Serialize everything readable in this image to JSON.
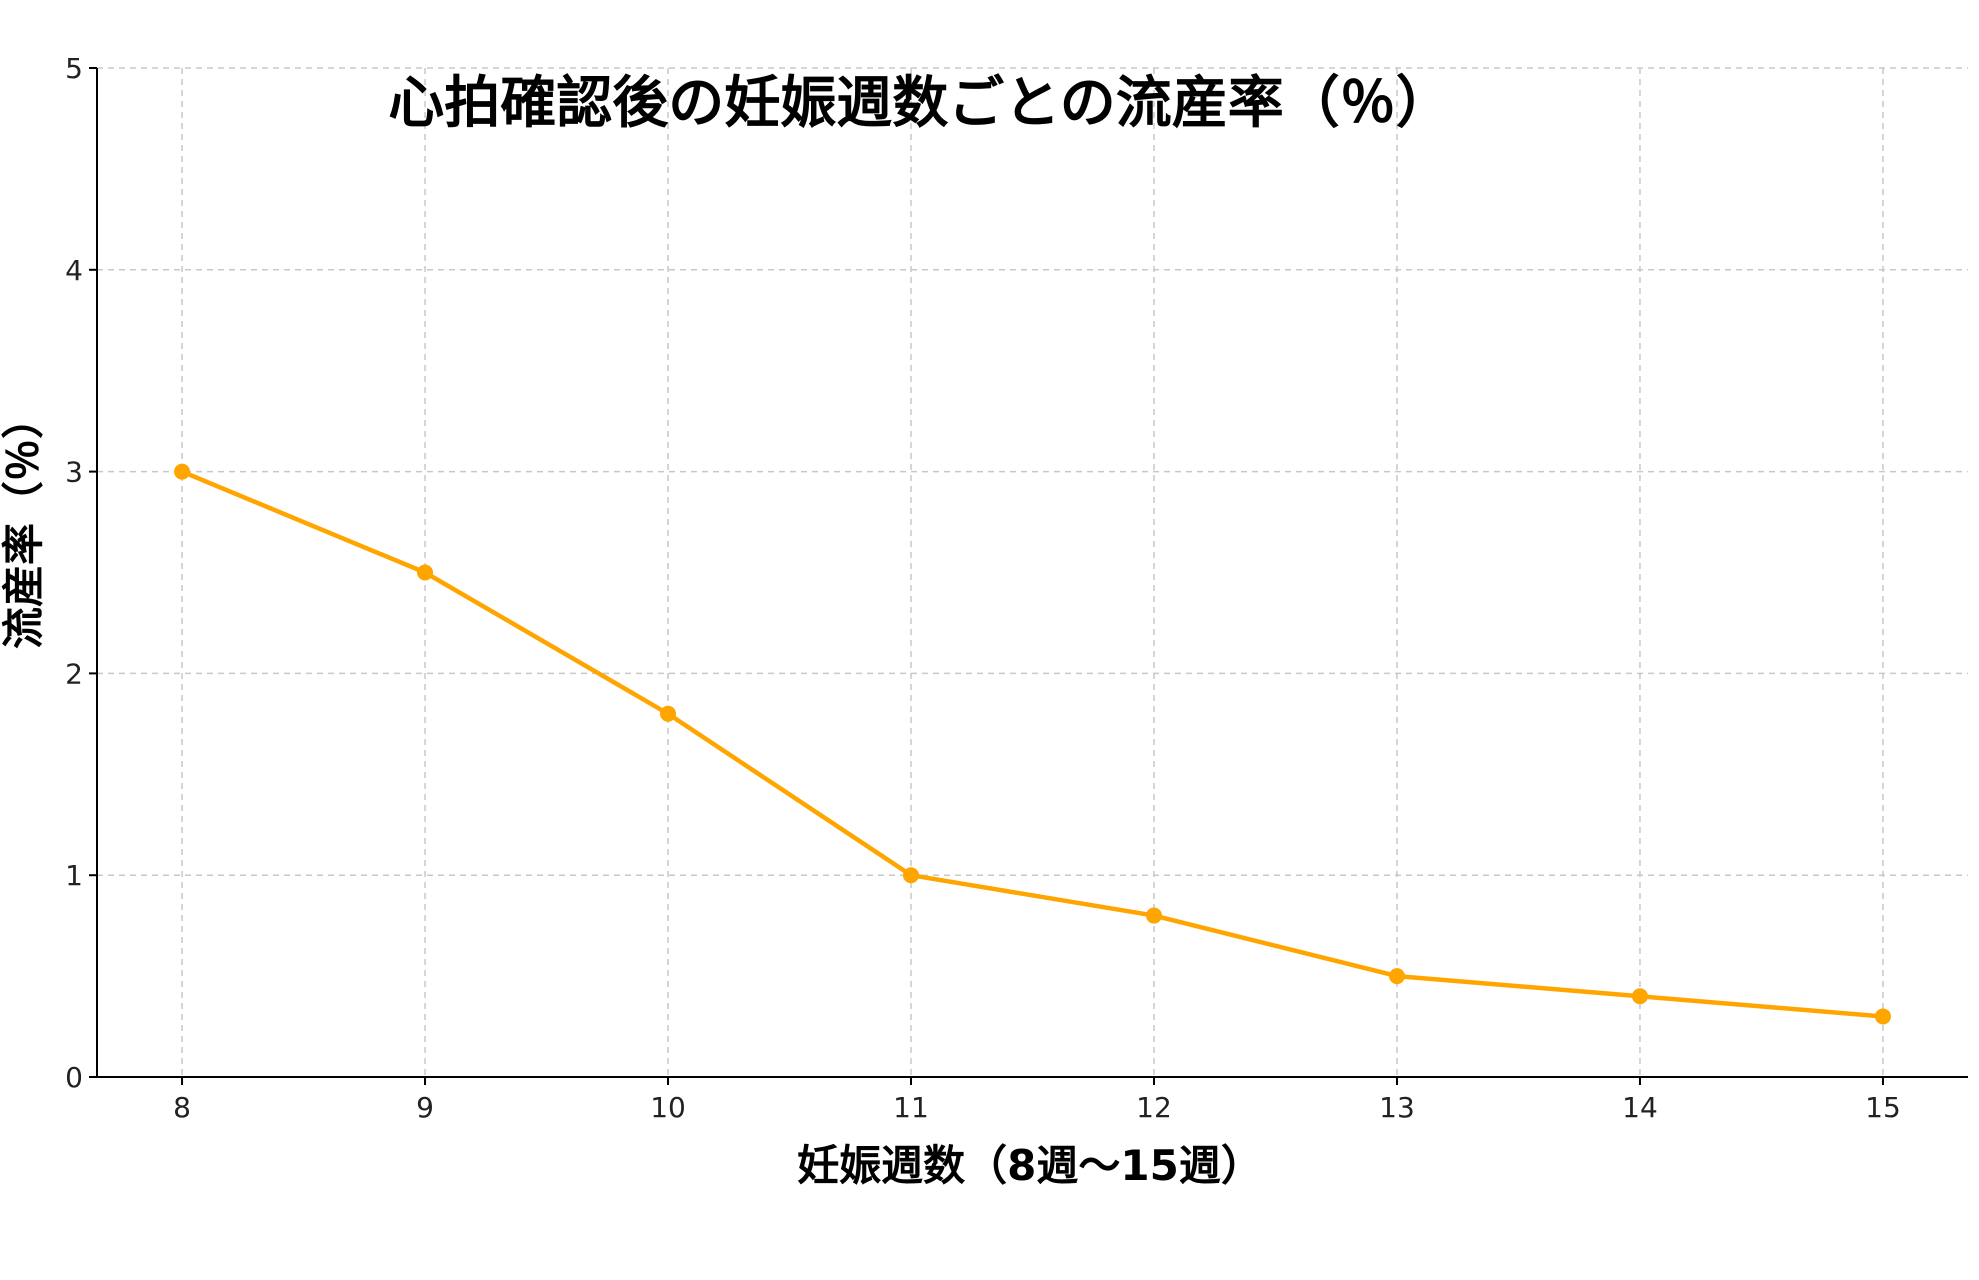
{
  "chart_data": {
    "type": "line",
    "title": "心拍確認後の妊娠週数ごとの流産率（％）",
    "xlabel": "妊娠週数（8週〜15週）",
    "ylabel": "流産率（％）",
    "x": [
      8,
      9,
      10,
      11,
      12,
      13,
      14,
      15
    ],
    "series": [
      {
        "values": [
          3.0,
          2.5,
          1.8,
          1.0,
          0.8,
          0.5,
          0.4,
          0.3
        ],
        "color": "#FFA500"
      }
    ],
    "xlim": [
      7.65,
      15.35
    ],
    "ylim": [
      0,
      5
    ],
    "x_ticks": [
      "8",
      "9",
      "10",
      "11",
      "12",
      "13",
      "14",
      "15"
    ],
    "y_ticks": [
      "0",
      "1",
      "2",
      "3",
      "4",
      "5"
    ],
    "grid": true,
    "legend": "none"
  }
}
